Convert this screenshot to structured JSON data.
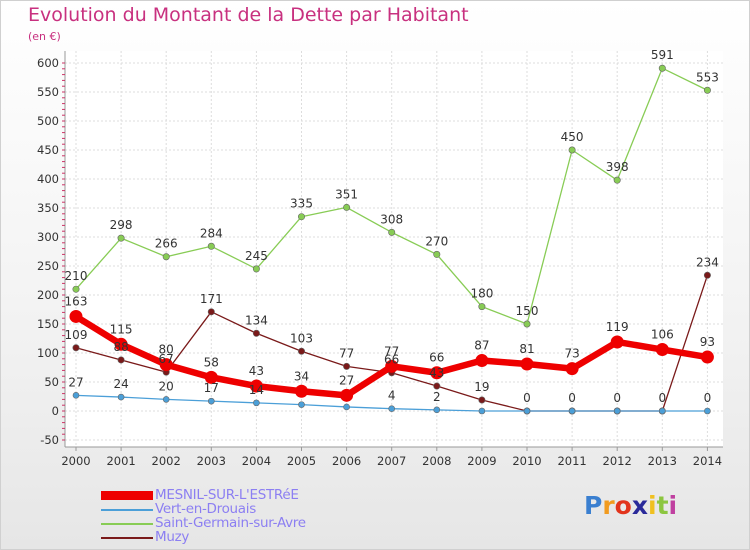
{
  "chart_data": {
    "type": "line",
    "title": "Evolution du Montant de la Dette par Habitant",
    "subtitle": "(en €)",
    "x": [
      "2000",
      "2001",
      "2002",
      "2003",
      "2004",
      "2005",
      "2006",
      "2007",
      "2008",
      "2009",
      "2010",
      "2011",
      "2012",
      "2013",
      "2014"
    ],
    "ylim": [
      -50,
      600
    ],
    "yticks": [
      "-50",
      "0",
      "50",
      "100",
      "150",
      "200",
      "250",
      "300",
      "350",
      "400",
      "450",
      "500",
      "550",
      "600"
    ],
    "grid": true,
    "legend_placement": "bottom-left",
    "series": [
      {
        "name": "MESNIL-SUR-L'ESTRéE",
        "color": "#ee0000",
        "values": [
          163,
          115,
          80,
          58,
          43,
          34,
          27,
          77,
          66,
          87,
          81,
          73,
          119,
          106,
          93
        ],
        "labels": [
          "163",
          "115",
          "80",
          "58",
          "43",
          "34",
          "27",
          "77",
          "66",
          "87",
          "81",
          "73",
          "119",
          "106",
          "93"
        ]
      },
      {
        "name": "Vert-en-Drouais",
        "color": "#4b9fd8",
        "values": [
          27,
          24,
          20,
          17,
          14,
          11,
          7,
          4,
          2,
          0,
          0,
          0,
          0,
          0,
          0
        ],
        "labels": [
          "27",
          "24",
          "20",
          "17",
          "14",
          "",
          "",
          "4",
          "2",
          "",
          "",
          "",
          "",
          "",
          "0"
        ]
      },
      {
        "name": "Saint-Germain-sur-Avre",
        "color": "#88cc55",
        "values": [
          210,
          298,
          266,
          284,
          245,
          335,
          351,
          308,
          270,
          180,
          150,
          450,
          398,
          591,
          553
        ],
        "labels": [
          "210",
          "298",
          "266",
          "284",
          "245",
          "335",
          "351",
          "308",
          "270",
          "180",
          "150",
          "450",
          "398",
          "591",
          "553"
        ]
      },
      {
        "name": "Muzy",
        "color": "#7a1a1a",
        "values": [
          109,
          88,
          67,
          171,
          134,
          103,
          77,
          66,
          43,
          19,
          0,
          0,
          0,
          0,
          234
        ],
        "labels": [
          "109",
          "88",
          "67",
          "171",
          "134",
          "103",
          "77",
          "66",
          "43",
          "19",
          "0",
          "0",
          "0",
          "0",
          "234"
        ]
      }
    ]
  },
  "logo": {
    "letters": [
      "P",
      "r",
      "o",
      "x",
      "i",
      "t",
      "i"
    ],
    "colors": [
      "#3a7fd0",
      "#f19b1f",
      "#e2341c",
      "#2a2a9a",
      "#f0c020",
      "#8cc640",
      "#c040a0"
    ]
  }
}
